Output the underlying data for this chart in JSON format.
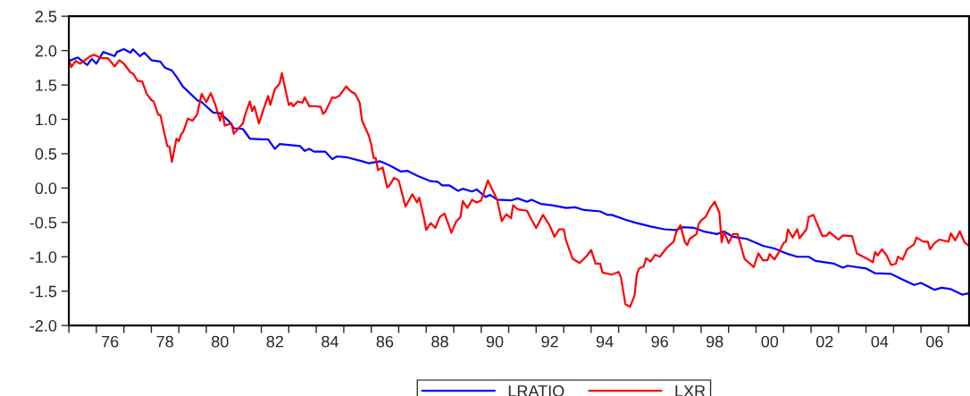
{
  "chart_data": {
    "type": "line",
    "xlim": [
      "1975-01",
      "2007-10"
    ],
    "xticks": [
      {
        "value": "1975-01",
        "label": null
      },
      {
        "value": "1976-01",
        "label": null
      },
      {
        "value": "1977-01",
        "label": null
      },
      {
        "value": "1978-01",
        "label": null
      },
      {
        "value": "1979-01",
        "label": null
      },
      {
        "value": "1980-01",
        "label": null
      },
      {
        "value": "1981-01",
        "label": null
      },
      {
        "value": "1982-01",
        "label": null
      },
      {
        "value": "1983-01",
        "label": null
      },
      {
        "value": "1984-01",
        "label": null
      },
      {
        "value": "1985-01",
        "label": null
      },
      {
        "value": "1986-01",
        "label": null
      },
      {
        "value": "1987-01",
        "label": null
      },
      {
        "value": "1988-01",
        "label": null
      },
      {
        "value": "1989-01",
        "label": null
      },
      {
        "value": "1990-01",
        "label": null
      },
      {
        "value": "1991-01",
        "label": null
      },
      {
        "value": "1992-01",
        "label": null
      },
      {
        "value": "1993-01",
        "label": null
      },
      {
        "value": "1994-01",
        "label": null
      },
      {
        "value": "1995-01",
        "label": null
      },
      {
        "value": "1996-01",
        "label": null
      },
      {
        "value": "1997-01",
        "label": null
      },
      {
        "value": "1998-01",
        "label": null
      },
      {
        "value": "1999-01",
        "label": null
      },
      {
        "value": "2000-01",
        "label": null
      },
      {
        "value": "2001-01",
        "label": null
      },
      {
        "value": "2002-01",
        "label": null
      },
      {
        "value": "2003-01",
        "label": null
      },
      {
        "value": "2004-01",
        "label": null
      },
      {
        "value": "2005-01",
        "label": null
      },
      {
        "value": "2006-01",
        "label": null
      },
      {
        "value": "2007-01",
        "label": null
      },
      {
        "value": "1976-07",
        "label": "76"
      },
      {
        "value": "1978-07",
        "label": "78"
      },
      {
        "value": "1980-07",
        "label": "80"
      },
      {
        "value": "1982-07",
        "label": "82"
      },
      {
        "value": "1984-07",
        "label": "84"
      },
      {
        "value": "1986-07",
        "label": "86"
      },
      {
        "value": "1988-07",
        "label": "88"
      },
      {
        "value": "1990-07",
        "label": "90"
      },
      {
        "value": "1992-07",
        "label": "92"
      },
      {
        "value": "1994-07",
        "label": "94"
      },
      {
        "value": "1996-07",
        "label": "96"
      },
      {
        "value": "1998-07",
        "label": "98"
      },
      {
        "value": "2000-07",
        "label": "00"
      },
      {
        "value": "2002-07",
        "label": "02"
      },
      {
        "value": "2004-07",
        "label": "04"
      },
      {
        "value": "2006-07",
        "label": "06"
      }
    ],
    "ylim": [
      -2.0,
      2.5
    ],
    "yticks": [
      {
        "value": -2.0,
        "label": "-2.0"
      },
      {
        "value": -1.5,
        "label": "-1.5"
      },
      {
        "value": -1.0,
        "label": "-1.0"
      },
      {
        "value": -0.5,
        "label": "-0.5"
      },
      {
        "value": 0.0,
        "label": "0.0"
      },
      {
        "value": 0.5,
        "label": "0.5"
      },
      {
        "value": 1.0,
        "label": "1.0"
      },
      {
        "value": 1.5,
        "label": "1.5"
      },
      {
        "value": 2.0,
        "label": "2.0"
      },
      {
        "value": 2.5,
        "label": "2.5"
      }
    ],
    "grid": false,
    "legend": "bottom",
    "line_style": "solid",
    "series": [
      {
        "name": "LRATIO",
        "color": "#0000ff",
        "x": [
          "1975-01",
          "1975-05",
          "1975-09",
          "1975-11",
          "1976-01",
          "1976-04",
          "1976-09",
          "1976-10",
          "1977-01",
          "1977-04",
          "1977-05",
          "1977-08",
          "1977-10",
          "1978-01",
          "1978-05",
          "1978-07",
          "1978-10",
          "1978-12",
          "1979-03",
          "1979-04",
          "1979-09",
          "1979-11",
          "1980-04",
          "1980-07",
          "1980-11",
          "1981-01",
          "1981-05",
          "1981-08",
          "1982-01",
          "1982-04",
          "1982-07",
          "1982-09",
          "1983-06",
          "1983-08",
          "1983-10",
          "1983-12",
          "1984-05",
          "1984-08",
          "1984-10",
          "1985-02",
          "1985-09",
          "1985-12",
          "1986-05",
          "1986-09",
          "1987-02",
          "1987-05",
          "1987-09",
          "1988-03",
          "1988-06",
          "1988-08",
          "1988-11",
          "1989-03",
          "1989-05",
          "1989-09",
          "1989-11",
          "1990-03",
          "1990-05",
          "1990-08",
          "1991-02",
          "1991-05",
          "1991-09",
          "1991-11",
          "1992-03",
          "1992-08",
          "1993-02",
          "1993-06",
          "1993-10",
          "1994-05",
          "1994-08",
          "1994-10",
          "1995-04",
          "1995-08",
          "1996-03",
          "1996-09",
          "1997-02",
          "1997-05",
          "1997-10",
          "1998-02",
          "1998-08",
          "1998-11",
          "1999-03",
          "1999-09",
          "2000-04",
          "2000-09",
          "2001-03",
          "2001-07",
          "2001-12",
          "2002-03",
          "2002-11",
          "2003-03",
          "2003-05",
          "2004-01",
          "2004-05",
          "2004-12",
          "2005-05",
          "2005-10",
          "2006-01",
          "2006-07",
          "2006-10",
          "2007-02",
          "2007-07",
          "2007-10"
        ],
        "values": [
          1.85,
          1.9,
          1.79,
          1.88,
          1.81,
          1.98,
          1.92,
          1.98,
          2.02,
          1.97,
          2.02,
          1.92,
          1.97,
          1.86,
          1.84,
          1.75,
          1.71,
          1.62,
          1.47,
          1.44,
          1.28,
          1.25,
          1.1,
          1.09,
          0.97,
          0.87,
          0.86,
          0.72,
          0.71,
          0.71,
          0.57,
          0.64,
          0.61,
          0.54,
          0.57,
          0.53,
          0.53,
          0.42,
          0.46,
          0.45,
          0.39,
          0.36,
          0.39,
          0.33,
          0.24,
          0.25,
          0.18,
          0.1,
          0.09,
          0.04,
          0.04,
          -0.04,
          -0.01,
          -0.05,
          -0.02,
          -0.13,
          -0.1,
          -0.17,
          -0.18,
          -0.15,
          -0.2,
          -0.17,
          -0.23,
          -0.25,
          -0.29,
          -0.28,
          -0.32,
          -0.34,
          -0.39,
          -0.39,
          -0.46,
          -0.5,
          -0.56,
          -0.6,
          -0.61,
          -0.57,
          -0.58,
          -0.63,
          -0.67,
          -0.63,
          -0.71,
          -0.74,
          -0.84,
          -0.88,
          -0.96,
          -1.0,
          -1.0,
          -1.06,
          -1.1,
          -1.16,
          -1.13,
          -1.17,
          -1.24,
          -1.25,
          -1.33,
          -1.41,
          -1.38,
          -1.48,
          -1.45,
          -1.47,
          -1.55,
          -1.53
        ]
      },
      {
        "name": "LXR",
        "color": "#ff0000",
        "x": [
          "1975-01",
          "1975-02",
          "1975-04",
          "1975-06",
          "1975-10",
          "1975-12",
          "1976-03",
          "1976-06",
          "1976-09",
          "1976-11",
          "1977-01",
          "1977-04",
          "1977-05",
          "1977-07",
          "1977-09",
          "1977-11",
          "1978-01",
          "1978-02",
          "1978-04",
          "1978-05",
          "1978-08",
          "1978-09",
          "1978-10",
          "1978-12",
          "1979-01",
          "1979-02",
          "1979-03",
          "1979-05",
          "1979-07",
          "1979-09",
          "1979-11",
          "1980-01",
          "1980-03",
          "1980-05",
          "1980-07",
          "1980-08",
          "1980-09",
          "1980-12",
          "1981-01",
          "1981-05",
          "1981-06",
          "1981-08",
          "1981-09",
          "1981-10",
          "1981-12",
          "1982-02",
          "1982-04",
          "1982-05",
          "1982-07",
          "1982-09",
          "1982-10",
          "1983-01",
          "1983-02",
          "1983-03",
          "1983-05",
          "1983-07",
          "1983-08",
          "1983-10",
          "1984-01",
          "1984-03",
          "1984-04",
          "1984-05",
          "1984-08",
          "1984-09",
          "1984-11",
          "1985-02",
          "1985-04",
          "1985-06",
          "1985-08",
          "1985-09",
          "1985-12",
          "1986-01",
          "1986-02",
          "1986-03",
          "1986-04",
          "1986-06",
          "1986-08",
          "1986-09",
          "1986-11",
          "1987-01",
          "1987-02",
          "1987-04",
          "1987-07",
          "1987-09",
          "1987-10",
          "1987-12",
          "1988-01",
          "1988-03",
          "1988-05",
          "1988-07",
          "1988-09",
          "1988-12",
          "1989-02",
          "1989-04",
          "1989-05",
          "1989-07",
          "1989-09",
          "1989-11",
          "1990-01",
          "1990-04",
          "1990-06",
          "1990-08",
          "1990-10",
          "1990-12",
          "1991-02",
          "1991-03",
          "1991-05",
          "1991-09",
          "1991-11",
          "1992-01",
          "1992-04",
          "1992-07",
          "1992-09",
          "1992-11",
          "1993-01",
          "1993-02",
          "1993-05",
          "1993-08",
          "1993-11",
          "1994-01",
          "1994-03",
          "1994-05",
          "1994-06",
          "1994-10",
          "1995-01",
          "1995-02",
          "1995-04",
          "1995-06",
          "1995-08",
          "1995-09",
          "1995-10",
          "1995-12",
          "1996-01",
          "1996-03",
          "1996-05",
          "1996-07",
          "1996-10",
          "1997-01",
          "1997-02",
          "1997-04",
          "1997-06",
          "1997-07",
          "1997-08",
          "1997-11",
          "1997-12",
          "1998-01",
          "1998-03",
          "1998-05",
          "1998-07",
          "1998-09",
          "1998-10",
          "1998-11",
          "1999-01",
          "1999-03",
          "1999-05",
          "1999-08",
          "1999-12",
          "2000-02",
          "2000-04",
          "2000-06",
          "2000-07",
          "2000-09",
          "2000-11",
          "2001-01",
          "2001-02",
          "2001-03",
          "2001-05",
          "2001-07",
          "2001-08",
          "2001-11",
          "2001-12",
          "2002-02",
          "2002-06",
          "2002-08",
          "2002-09",
          "2003-01",
          "2003-03",
          "2003-07",
          "2003-09",
          "2004-02",
          "2004-04",
          "2004-05",
          "2004-06",
          "2004-08",
          "2004-10",
          "2004-12",
          "2005-02",
          "2005-03",
          "2005-05",
          "2005-07",
          "2005-10",
          "2005-11",
          "2006-02",
          "2006-04",
          "2006-05",
          "2006-07",
          "2006-09",
          "2007-01",
          "2007-02",
          "2007-04",
          "2007-06",
          "2007-08",
          "2007-10"
        ],
        "values": [
          1.88,
          1.76,
          1.85,
          1.81,
          1.91,
          1.94,
          1.89,
          1.89,
          1.77,
          1.86,
          1.81,
          1.68,
          1.67,
          1.56,
          1.55,
          1.37,
          1.28,
          1.26,
          1.07,
          1.06,
          0.61,
          0.6,
          0.38,
          0.72,
          0.68,
          0.78,
          0.82,
          1.01,
          0.98,
          1.07,
          1.37,
          1.25,
          1.38,
          1.21,
          0.98,
          1.11,
          0.91,
          0.94,
          0.79,
          0.94,
          1.07,
          1.26,
          1.12,
          1.19,
          0.94,
          1.15,
          1.34,
          1.21,
          1.44,
          1.52,
          1.67,
          1.21,
          1.24,
          1.19,
          1.26,
          1.24,
          1.32,
          1.19,
          1.19,
          1.18,
          1.08,
          1.11,
          1.32,
          1.31,
          1.34,
          1.48,
          1.41,
          1.37,
          1.24,
          0.98,
          0.76,
          0.63,
          0.44,
          0.44,
          0.26,
          0.3,
          0.01,
          0.04,
          0.15,
          0.11,
          -0.02,
          -0.27,
          -0.09,
          -0.21,
          -0.14,
          -0.43,
          -0.61,
          -0.51,
          -0.58,
          -0.42,
          -0.37,
          -0.65,
          -0.49,
          -0.42,
          -0.19,
          -0.29,
          -0.17,
          -0.21,
          -0.18,
          0.11,
          -0.03,
          -0.17,
          -0.48,
          -0.38,
          -0.44,
          -0.25,
          -0.31,
          -0.33,
          -0.46,
          -0.58,
          -0.39,
          -0.55,
          -0.71,
          -0.6,
          -0.6,
          -0.76,
          -1.03,
          -1.09,
          -0.99,
          -0.9,
          -1.1,
          -1.1,
          -1.23,
          -1.26,
          -1.22,
          -1.3,
          -1.69,
          -1.73,
          -1.56,
          -1.25,
          -1.17,
          -1.14,
          -1.02,
          -1.07,
          -0.97,
          -1.0,
          -0.87,
          -0.78,
          -0.65,
          -0.54,
          -0.79,
          -0.83,
          -0.74,
          -0.67,
          -0.52,
          -0.47,
          -0.42,
          -0.29,
          -0.2,
          -0.36,
          -0.79,
          -0.63,
          -0.8,
          -0.67,
          -0.67,
          -1.03,
          -1.15,
          -0.95,
          -1.05,
          -1.05,
          -0.96,
          -1.04,
          -0.93,
          -0.8,
          -0.78,
          -0.6,
          -0.72,
          -0.6,
          -0.73,
          -0.6,
          -0.42,
          -0.39,
          -0.7,
          -0.69,
          -0.64,
          -0.75,
          -0.69,
          -0.7,
          -0.95,
          -1.04,
          -1.08,
          -0.93,
          -0.98,
          -0.89,
          -0.98,
          -1.12,
          -1.1,
          -1.0,
          -1.04,
          -0.89,
          -0.82,
          -0.72,
          -0.78,
          -0.78,
          -0.89,
          -0.8,
          -0.75,
          -0.78,
          -0.66,
          -0.76,
          -0.63,
          -0.79,
          -0.84
        ]
      }
    ]
  }
}
